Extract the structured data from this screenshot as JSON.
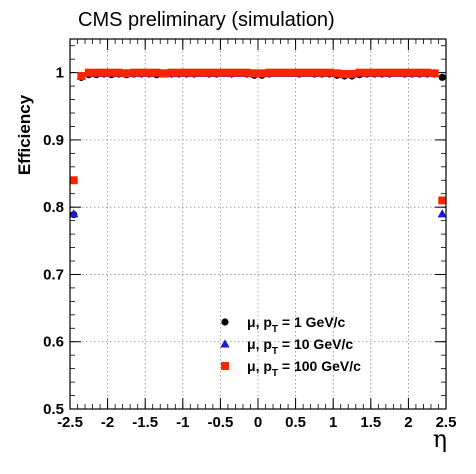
{
  "chart_data": {
    "type": "scatter",
    "title": "CMS preliminary (simulation)",
    "xlabel": "η",
    "ylabel": "Efficiency",
    "xlim": [
      -2.5,
      2.5
    ],
    "ylim": [
      0.5,
      1.05
    ],
    "grid": true,
    "legend_position": "bottom-center",
    "x_ticks": [
      "-2.5",
      "-2",
      "-1.5",
      "-1",
      "-0.5",
      "0",
      "0.5",
      "1",
      "1.5",
      "2",
      "2.5"
    ],
    "y_ticks": [
      "0.5",
      "0.6",
      "0.7",
      "0.8",
      "0.9",
      "1"
    ],
    "x": [
      -2.45,
      -2.35,
      -2.25,
      -2.15,
      -2.05,
      -1.95,
      -1.85,
      -1.75,
      -1.65,
      -1.55,
      -1.45,
      -1.35,
      -1.25,
      -1.15,
      -1.05,
      -0.95,
      -0.85,
      -0.75,
      -0.65,
      -0.55,
      -0.45,
      -0.35,
      -0.25,
      -0.15,
      -0.05,
      0.05,
      0.15,
      0.25,
      0.35,
      0.45,
      0.55,
      0.65,
      0.75,
      0.85,
      0.95,
      1.05,
      1.15,
      1.25,
      1.35,
      1.45,
      1.55,
      1.65,
      1.75,
      1.85,
      1.95,
      2.05,
      2.15,
      2.25,
      2.35,
      2.45
    ],
    "series": [
      {
        "name_parts": {
          "main": "μ, p",
          "sub": "T",
          "rest": " = 1 GeV/c"
        },
        "marker": "circle",
        "color": "#000000",
        "values": [
          0.789,
          0.993,
          0.997,
          0.997,
          0.998,
          0.997,
          0.998,
          0.997,
          0.998,
          0.998,
          0.998,
          0.997,
          0.998,
          0.998,
          0.998,
          0.998,
          0.998,
          0.999,
          0.998,
          0.998,
          0.999,
          0.998,
          0.999,
          0.998,
          0.996,
          0.996,
          0.998,
          0.999,
          0.999,
          0.999,
          0.998,
          0.999,
          0.998,
          0.998,
          0.998,
          0.996,
          0.995,
          0.995,
          0.997,
          0.998,
          0.998,
          0.998,
          0.998,
          0.999,
          0.998,
          0.998,
          0.998,
          0.998,
          0.998,
          0.993
        ]
      },
      {
        "name_parts": {
          "main": "μ, p",
          "sub": "T",
          "rest": " = 10 GeV/c"
        },
        "marker": "triangle",
        "color": "#1a1ad6",
        "values": [
          0.79,
          0.995,
          0.999,
          0.999,
          0.999,
          0.999,
          0.999,
          0.999,
          0.999,
          0.999,
          0.999,
          0.999,
          0.998,
          0.999,
          0.999,
          0.999,
          0.999,
          0.999,
          0.999,
          0.999,
          0.999,
          0.999,
          0.999,
          0.999,
          0.998,
          0.998,
          0.999,
          0.999,
          0.999,
          0.999,
          0.999,
          0.999,
          0.999,
          0.999,
          0.999,
          0.998,
          0.997,
          0.997,
          0.999,
          0.999,
          0.999,
          0.999,
          0.999,
          0.999,
          0.999,
          0.999,
          0.999,
          0.999,
          0.999,
          0.79
        ]
      },
      {
        "name_parts": {
          "main": "μ, p",
          "sub": "T",
          "rest": " = 100 GeV/c"
        },
        "marker": "square",
        "color": "#ff2200",
        "values": [
          0.84,
          0.995,
          1.0,
          1.0,
          1.0,
          1.0,
          1.0,
          0.999,
          1.0,
          1.0,
          1.0,
          1.0,
          0.999,
          1.0,
          1.0,
          1.0,
          1.0,
          1.0,
          1.0,
          1.0,
          1.0,
          1.0,
          1.0,
          1.0,
          0.999,
          0.999,
          1.0,
          1.0,
          1.0,
          1.0,
          1.0,
          1.0,
          1.0,
          1.0,
          1.0,
          0.999,
          0.998,
          0.998,
          1.0,
          1.0,
          1.0,
          1.0,
          1.0,
          1.0,
          1.0,
          1.0,
          1.0,
          1.0,
          0.999,
          0.81
        ]
      }
    ]
  }
}
